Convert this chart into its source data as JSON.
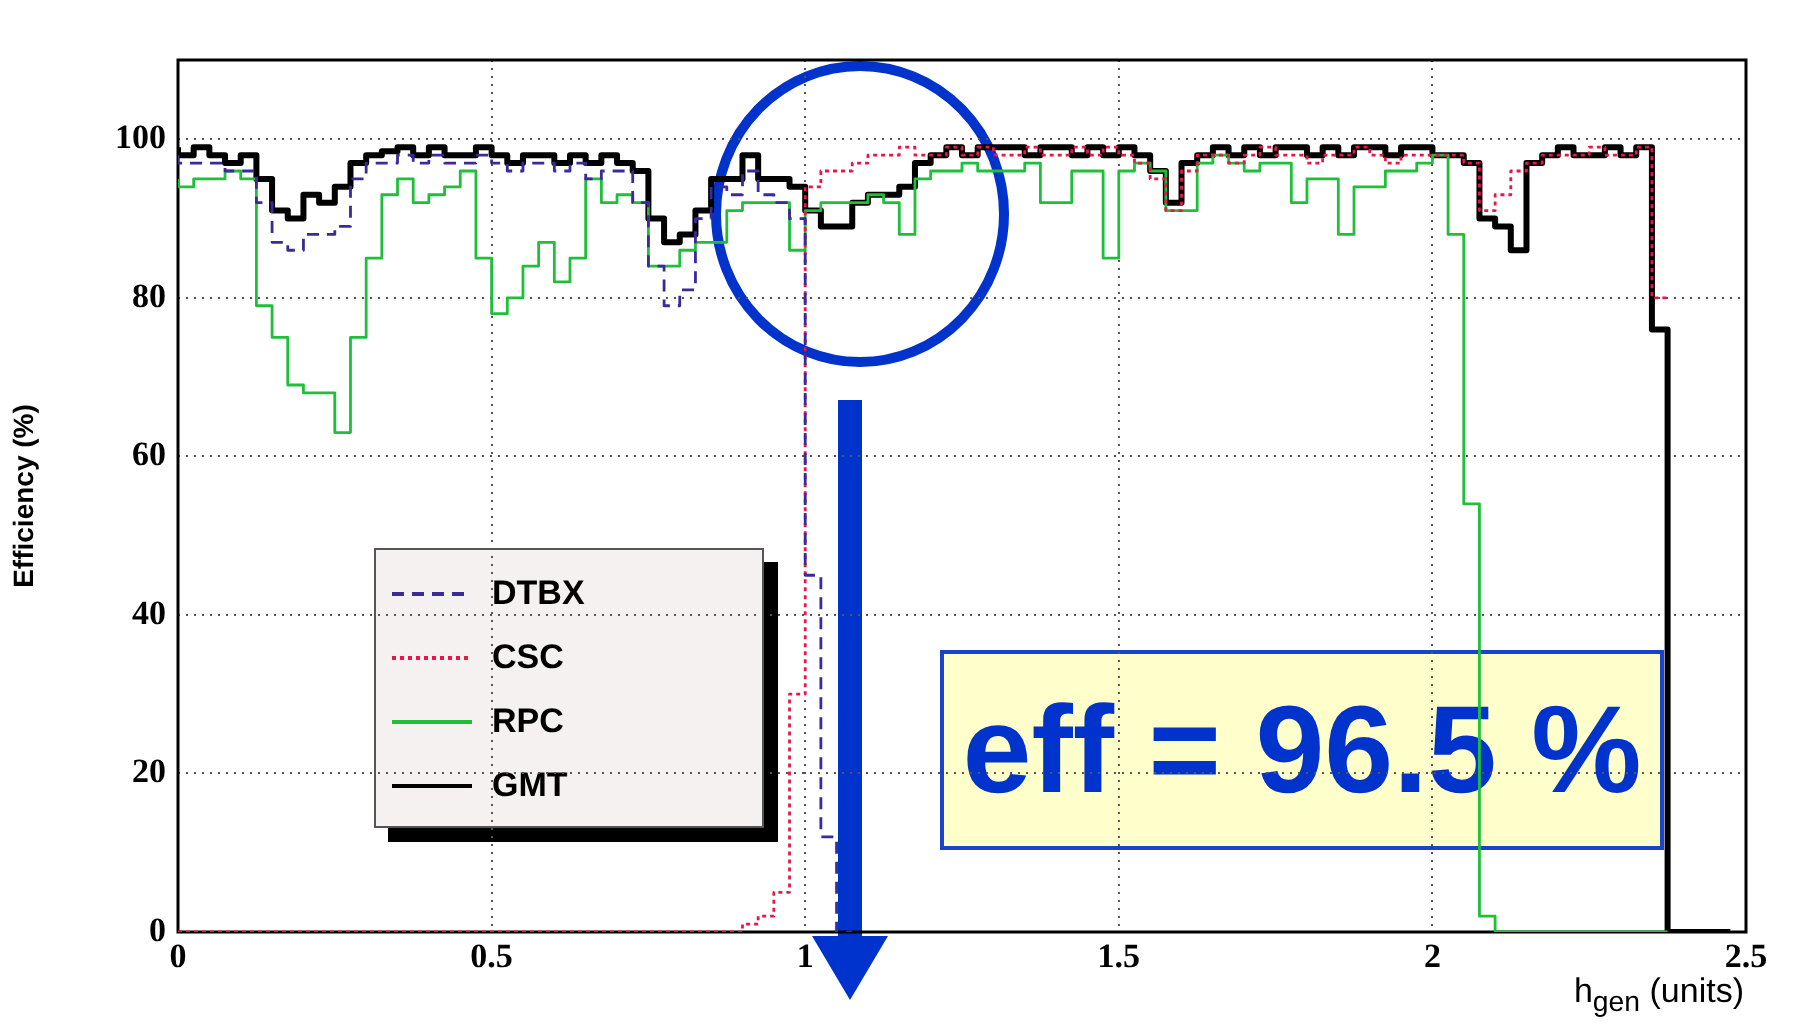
{
  "chart_data": {
    "type": "step",
    "xlabel": "h$_{gen}$ (units)",
    "ylabel": "Efficiency (%)",
    "annotations": [
      "eff = 96.5 %"
    ],
    "x": [
      0,
      0.025,
      0.05,
      0.075,
      0.1,
      0.125,
      0.15,
      0.175,
      0.2,
      0.225,
      0.25,
      0.275,
      0.3,
      0.325,
      0.35,
      0.375,
      0.4,
      0.425,
      0.45,
      0.475,
      0.5,
      0.525,
      0.55,
      0.575,
      0.6,
      0.625,
      0.65,
      0.675,
      0.7,
      0.725,
      0.75,
      0.775,
      0.8,
      0.825,
      0.85,
      0.875,
      0.9,
      0.925,
      0.95,
      0.975,
      1,
      1.025,
      1.05,
      1.075,
      1.1,
      1.125,
      1.15,
      1.175,
      1.2,
      1.225,
      1.25,
      1.275,
      1.3,
      1.325,
      1.35,
      1.375,
      1.4,
      1.425,
      1.45,
      1.475,
      1.5,
      1.525,
      1.55,
      1.575,
      1.6,
      1.625,
      1.65,
      1.675,
      1.7,
      1.725,
      1.75,
      1.775,
      1.8,
      1.825,
      1.85,
      1.875,
      1.9,
      1.925,
      1.95,
      1.975,
      2,
      2.025,
      2.05,
      2.075,
      2.1,
      2.125,
      2.15,
      2.175,
      2.2,
      2.225,
      2.25,
      2.275,
      2.3,
      2.325,
      2.35,
      2.375,
      2.4,
      2.425,
      2.45,
      2.475
    ],
    "series": [
      {
        "name": "DTBX",
        "color": "#3a2a9a",
        "line_style": "dashed",
        "values": [
          98,
          97,
          97,
          97,
          96,
          96,
          92,
          87,
          86,
          88,
          88,
          89,
          95,
          97,
          97,
          98,
          97,
          98,
          97,
          97,
          98,
          97,
          96,
          97,
          97,
          96,
          97,
          95,
          96,
          96,
          92,
          84,
          79,
          81,
          90,
          94,
          93,
          96,
          93,
          92,
          90,
          45,
          12,
          0,
          null,
          null,
          null,
          null,
          null,
          null,
          null,
          null,
          null,
          null,
          null,
          null,
          null,
          null,
          null,
          null,
          null,
          null,
          null,
          null,
          null,
          null,
          null,
          null,
          null,
          null,
          null,
          null,
          null,
          null,
          null,
          null,
          null,
          null,
          null,
          null,
          null,
          null,
          null,
          null,
          null,
          null,
          null,
          null,
          null,
          null,
          null,
          null,
          null,
          null,
          null,
          null,
          null,
          null,
          null,
          null
        ]
      },
      {
        "name": "CSC",
        "color": "#e8174a",
        "line_style": "dotted",
        "values": [
          0,
          0,
          0,
          0,
          0,
          0,
          0,
          0,
          0,
          0,
          0,
          0,
          0,
          0,
          0,
          0,
          0,
          0,
          0,
          0,
          0,
          0,
          0,
          0,
          0,
          0,
          0,
          0,
          0,
          0,
          0,
          0,
          0,
          0,
          0,
          0,
          0,
          1,
          2,
          5,
          30,
          94,
          96,
          96,
          97,
          98,
          98,
          99,
          98,
          98,
          99,
          98,
          99,
          98,
          98,
          99,
          98,
          98,
          99,
          98,
          99,
          98,
          97,
          95,
          91,
          96,
          98,
          98,
          97,
          98,
          99,
          98,
          98,
          97,
          98,
          98,
          99,
          98,
          97,
          98,
          98,
          98,
          98,
          97,
          91,
          93,
          96,
          97,
          98,
          98,
          98,
          99,
          98,
          98,
          99,
          80,
          null,
          null,
          null,
          null
        ]
      },
      {
        "name": "RPC",
        "color": "#1fbf3a",
        "line_style": "solid",
        "values": [
          95,
          94,
          95,
          95,
          96,
          95,
          79,
          75,
          69,
          68,
          68,
          63,
          75,
          85,
          93,
          95,
          92,
          93,
          94,
          96,
          85,
          78,
          80,
          84,
          87,
          82,
          85,
          95,
          92,
          93,
          92,
          84,
          84,
          86,
          87,
          87,
          91,
          92,
          92,
          92,
          86,
          91,
          92,
          92,
          92,
          93,
          92,
          88,
          95,
          96,
          96,
          97,
          96,
          96,
          96,
          97,
          92,
          92,
          96,
          96,
          85,
          96,
          97,
          96,
          91,
          91,
          97,
          98,
          97,
          96,
          97,
          97,
          92,
          95,
          95,
          88,
          94,
          94,
          96,
          96,
          97,
          98,
          88,
          54,
          2,
          0,
          0,
          0,
          0,
          0,
          0,
          0,
          0,
          0,
          0,
          0,
          null,
          null,
          null,
          null
        ]
      },
      {
        "name": "GMT",
        "color": "#000000",
        "line_style": "solid",
        "values": [
          99,
          98,
          99,
          98,
          97,
          98,
          95,
          91,
          90,
          93,
          92,
          94,
          97,
          98,
          98.5,
          99,
          98,
          99,
          98,
          98,
          99,
          98,
          97,
          98,
          98,
          97,
          98,
          97,
          98,
          97,
          96,
          90,
          87,
          88,
          91,
          95,
          95,
          98,
          95,
          95,
          94,
          91,
          89,
          89,
          92,
          93,
          93,
          94,
          97,
          98,
          99,
          98,
          99,
          99,
          99,
          98,
          99,
          99,
          98,
          99,
          98,
          99,
          98,
          96,
          92,
          97,
          98,
          99,
          98,
          99,
          98,
          99,
          99,
          98,
          99,
          98,
          99,
          99,
          98,
          99,
          99,
          98,
          98,
          97,
          90,
          89,
          86,
          97,
          98,
          99,
          98,
          98,
          99,
          98,
          99,
          76,
          0,
          0,
          0,
          0
        ]
      }
    ],
    "xlim": [
      0,
      2.5
    ],
    "xticks": [
      0,
      0.5,
      1,
      1.5,
      2,
      2.5
    ],
    "ylim": [
      0,
      110
    ],
    "yticks": [
      0,
      20,
      40,
      60,
      80,
      100
    ],
    "grid": true,
    "legend": "left"
  }
}
